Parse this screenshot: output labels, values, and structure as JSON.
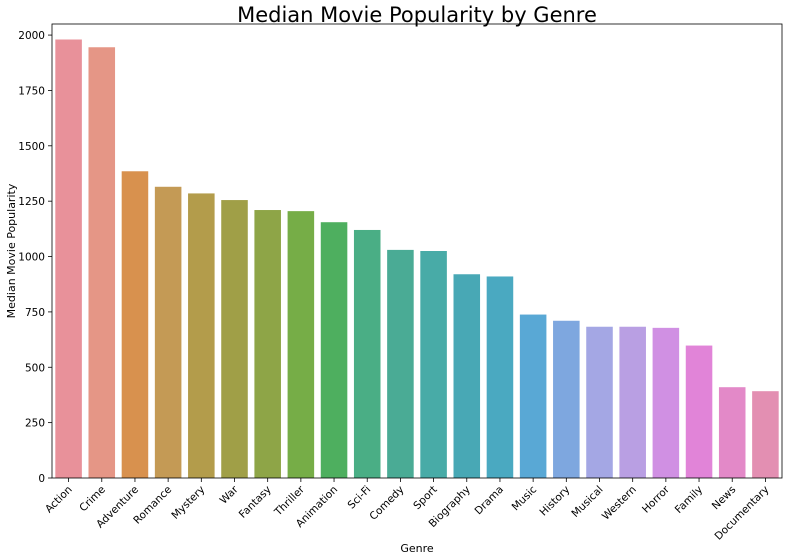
{
  "chart_data": {
    "type": "bar",
    "title": "Median Movie Popularity by Genre",
    "xlabel": "Genre",
    "ylabel": "Median Movie Popularity",
    "ylim": [
      0,
      2050
    ],
    "yticks": [
      0,
      250,
      500,
      750,
      1000,
      1250,
      1500,
      1750,
      2000
    ],
    "grid": false,
    "categories": [
      "Action",
      "Crime",
      "Adventure",
      "Romance",
      "Mystery",
      "War",
      "Fantasy",
      "Thriller",
      "Animation",
      "Sci-Fi",
      "Comedy",
      "Sport",
      "Biography",
      "Drama",
      "Music",
      "History",
      "Musical",
      "Western",
      "Horror",
      "Family",
      "News",
      "Documentary"
    ],
    "values": [
      1980,
      1945,
      1385,
      1315,
      1285,
      1255,
      1210,
      1205,
      1155,
      1120,
      1030,
      1025,
      920,
      910,
      738,
      710,
      683,
      683,
      678,
      598,
      410,
      392
    ],
    "colors": [
      "#e8919a",
      "#e59686",
      "#d8914e",
      "#c49a55",
      "#b39c4b",
      "#a09f47",
      "#8ea547",
      "#76ad47",
      "#4eaf5f",
      "#4aae85",
      "#4aab95",
      "#48aba7",
      "#48a8b5",
      "#4aa9c1",
      "#59a8d5",
      "#7ea7df",
      "#a4a7e4",
      "#b99fe3",
      "#d090e3",
      "#e184d8",
      "#e389c8",
      "#e38fb2"
    ]
  }
}
